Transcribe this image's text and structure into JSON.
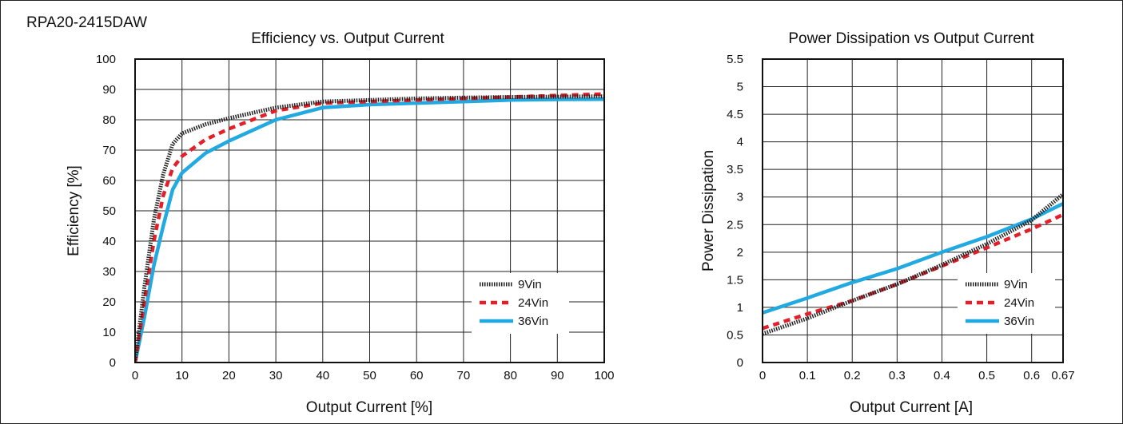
{
  "model_label": "RPA20-2415DAW",
  "colors": {
    "9Vin": "#222222",
    "24Vin": "#e3202a",
    "36Vin": "#21a9e1"
  },
  "chart_data": [
    {
      "type": "line",
      "title": "Efficiency vs. Output Current",
      "xlabel": "Output Current [%]",
      "ylabel": "Efficiency [%]",
      "xlim": [
        0,
        100
      ],
      "ylim": [
        0,
        100
      ],
      "xticks": [
        "0",
        "10",
        "20",
        "30",
        "40",
        "50",
        "60",
        "70",
        "80",
        "90",
        "100"
      ],
      "yticks": [
        "0",
        "10",
        "20",
        "30",
        "40",
        "50",
        "60",
        "70",
        "80",
        "90",
        "100"
      ],
      "grid": true,
      "legend_position": "bottom-right",
      "series": [
        {
          "name": "9Vin",
          "style": "dotted",
          "points": [
            [
              0,
              0
            ],
            [
              2,
              25
            ],
            [
              4,
              47
            ],
            [
              6,
              62
            ],
            [
              8,
              72
            ],
            [
              10,
              75.5
            ],
            [
              15,
              78.5
            ],
            [
              20,
              80.5
            ],
            [
              30,
              84
            ],
            [
              40,
              86
            ],
            [
              50,
              86.5
            ],
            [
              60,
              87
            ],
            [
              70,
              87.3
            ],
            [
              80,
              87.5
            ],
            [
              90,
              87.6
            ],
            [
              100,
              87.7
            ]
          ]
        },
        {
          "name": "24Vin",
          "style": "dashed",
          "points": [
            [
              0,
              0
            ],
            [
              2,
              20
            ],
            [
              4,
              40
            ],
            [
              6,
              55
            ],
            [
              8,
              64
            ],
            [
              10,
              68
            ],
            [
              15,
              73.5
            ],
            [
              20,
              77
            ],
            [
              30,
              83
            ],
            [
              40,
              85.5
            ],
            [
              50,
              86
            ],
            [
              60,
              86.5
            ],
            [
              70,
              87
            ],
            [
              80,
              87.5
            ],
            [
              90,
              88
            ],
            [
              100,
              88.5
            ]
          ]
        },
        {
          "name": "36Vin",
          "style": "solid",
          "points": [
            [
              0,
              0
            ],
            [
              2,
              15
            ],
            [
              4,
              32
            ],
            [
              6,
              45
            ],
            [
              8,
              57
            ],
            [
              10,
              62.5
            ],
            [
              15,
              69
            ],
            [
              20,
              73
            ],
            [
              30,
              80
            ],
            [
              40,
              84
            ],
            [
              50,
              85
            ],
            [
              60,
              85.5
            ],
            [
              70,
              86
            ],
            [
              80,
              86.5
            ],
            [
              90,
              86.7
            ],
            [
              100,
              86.8
            ]
          ]
        }
      ]
    },
    {
      "type": "line",
      "title": "Power Dissipation vs Output Current",
      "xlabel": "Output Current [A]",
      "ylabel": "Power Dissipation",
      "xlim": [
        0,
        0.67
      ],
      "ylim": [
        0,
        5.5
      ],
      "xticks": [
        "0",
        "0.1",
        "0.2",
        "0.3",
        "0.4",
        "0.5",
        "0.6",
        "0.67"
      ],
      "yticks": [
        "0",
        "0.5",
        "1",
        "1.5",
        "2",
        "2.5",
        "3",
        "3.5",
        "4",
        "4.5",
        "5",
        "5.5"
      ],
      "grid": true,
      "legend_position": "bottom-right",
      "series": [
        {
          "name": "9Vin",
          "style": "dotted",
          "points": [
            [
              0,
              0.52
            ],
            [
              0.1,
              0.8
            ],
            [
              0.2,
              1.12
            ],
            [
              0.3,
              1.42
            ],
            [
              0.4,
              1.77
            ],
            [
              0.5,
              2.15
            ],
            [
              0.6,
              2.58
            ],
            [
              0.67,
              3.05
            ]
          ]
        },
        {
          "name": "24Vin",
          "style": "dashed",
          "points": [
            [
              0,
              0.62
            ],
            [
              0.1,
              0.88
            ],
            [
              0.2,
              1.12
            ],
            [
              0.3,
              1.42
            ],
            [
              0.4,
              1.75
            ],
            [
              0.5,
              2.08
            ],
            [
              0.6,
              2.42
            ],
            [
              0.67,
              2.68
            ]
          ]
        },
        {
          "name": "36Vin",
          "style": "solid",
          "points": [
            [
              0,
              0.9
            ],
            [
              0.1,
              1.17
            ],
            [
              0.2,
              1.45
            ],
            [
              0.3,
              1.7
            ],
            [
              0.4,
              2.0
            ],
            [
              0.5,
              2.28
            ],
            [
              0.6,
              2.6
            ],
            [
              0.67,
              2.88
            ]
          ]
        }
      ]
    }
  ]
}
